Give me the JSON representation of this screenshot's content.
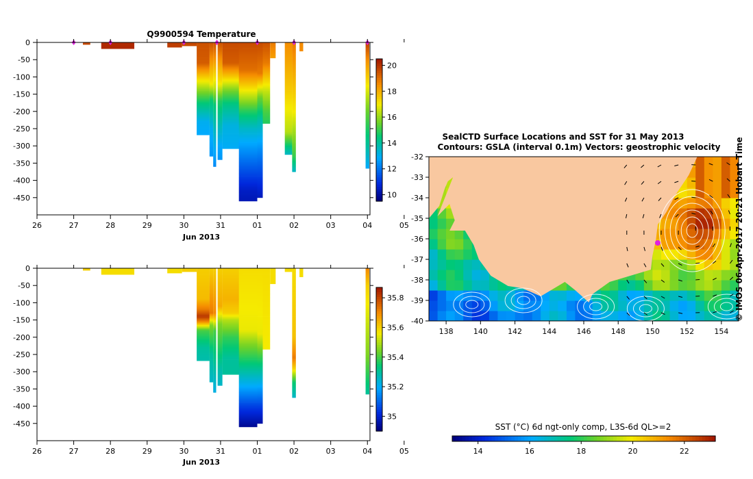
{
  "colors": {
    "land": "#f9c8a0",
    "profile_marker": "#e020e0",
    "axis": "#000000"
  },
  "chart_data": [
    {
      "id": "temperature",
      "type": "heatmap",
      "title": "Q9900594  Temperature",
      "xlabel": "Jun 2013",
      "ylabel": "",
      "x_ticks": [
        26,
        27,
        28,
        29,
        30,
        31,
        1,
        2,
        3,
        4,
        5
      ],
      "x_tick_labels": [
        "26",
        "27",
        "28",
        "29",
        "30",
        "31",
        "01",
        "02",
        "03",
        "04",
        "05"
      ],
      "y_ticks": [
        0,
        -50,
        -100,
        -150,
        -200,
        -250,
        -300,
        -350,
        -400,
        -450
      ],
      "y_tick_labels": [
        "0",
        "-50",
        "-100",
        "-150",
        "-200",
        "-250",
        "-300",
        "-350",
        "-400",
        "-450"
      ],
      "ylim": [
        -500,
        0
      ],
      "colorbar": {
        "min": 9.5,
        "max": 20.5,
        "ticks": [
          10,
          12,
          14,
          16,
          18,
          20
        ],
        "tick_labels": [
          "10",
          "12",
          "14",
          "16",
          "18",
          "20"
        ]
      },
      "profile_times": [
        27.0,
        28.0,
        30.0,
        30.9,
        32.0,
        33.0,
        35.0
      ],
      "profiles": [
        {
          "t0": 27.25,
          "t1": 27.45,
          "depth": 6,
          "stops": [
            [
              0,
              19.6
            ],
            [
              6,
              19.6
            ]
          ]
        },
        {
          "t0": 27.75,
          "t1": 28.65,
          "depth": 18,
          "stops": [
            [
              0,
              20.1
            ],
            [
              18,
              20.2
            ]
          ]
        },
        {
          "t0": 29.55,
          "t1": 29.95,
          "depth": 14,
          "stops": [
            [
              0,
              19.8
            ],
            [
              14,
              19.8
            ]
          ]
        },
        {
          "t0": 29.95,
          "t1": 30.35,
          "depth": 10,
          "stops": [
            [
              0,
              19.6
            ],
            [
              10,
              19.6
            ]
          ]
        },
        {
          "t0": 30.35,
          "t1": 30.7,
          "depth": 268,
          "stops": [
            [
              0,
              19.5
            ],
            [
              60,
              19.3
            ],
            [
              100,
              17.5
            ],
            [
              140,
              15.8
            ],
            [
              175,
              14.5
            ],
            [
              230,
              13.0
            ],
            [
              268,
              12.8
            ]
          ]
        },
        {
          "t0": 30.7,
          "t1": 30.8,
          "depth": 330,
          "stops": [
            [
              0,
              19.5
            ],
            [
              120,
              17.0
            ],
            [
              165,
              14.6
            ],
            [
              250,
              13.0
            ],
            [
              330,
              12.5
            ]
          ]
        },
        {
          "t0": 30.8,
          "t1": 30.88,
          "depth": 360,
          "stops": [
            [
              0,
              19.5
            ],
            [
              130,
              16.5
            ],
            [
              180,
              14.5
            ],
            [
              360,
              12.3
            ]
          ]
        },
        {
          "t0": 30.92,
          "t1": 31.05,
          "depth": 340,
          "stops": [
            [
              0,
              19.5
            ],
            [
              120,
              17.0
            ],
            [
              170,
              14.8
            ],
            [
              300,
              12.8
            ],
            [
              340,
              12.5
            ]
          ]
        },
        {
          "t0": 31.05,
          "t1": 31.6,
          "depth": 308,
          "stops": [
            [
              0,
              19.6
            ],
            [
              60,
              19.3
            ],
            [
              100,
              17.5
            ],
            [
              140,
              15.6
            ],
            [
              180,
              14.3
            ],
            [
              240,
              13.2
            ],
            [
              308,
              12.9
            ]
          ]
        },
        {
          "t0": 31.5,
          "t1": 32.0,
          "depth": 460,
          "stops": [
            [
              0,
              19.6
            ],
            [
              80,
              19.0
            ],
            [
              130,
              17.3
            ],
            [
              200,
              14.8
            ],
            [
              250,
              13.5
            ],
            [
              320,
              12.3
            ],
            [
              380,
              11.3
            ],
            [
              430,
              10.5
            ],
            [
              460,
              10.3
            ]
          ]
        },
        {
          "t0": 32.0,
          "t1": 32.15,
          "depth": 450,
          "stops": [
            [
              0,
              19.6
            ],
            [
              90,
              18.8
            ],
            [
              160,
              15.5
            ],
            [
              230,
              13.8
            ],
            [
              320,
              12.2
            ],
            [
              400,
              11.0
            ],
            [
              450,
              10.4
            ]
          ]
        },
        {
          "t0": 32.15,
          "t1": 32.35,
          "depth": 235,
          "stops": [
            [
              0,
              19.5
            ],
            [
              60,
              18.8
            ],
            [
              140,
              16.5
            ],
            [
              200,
              15.2
            ],
            [
              235,
              14.8
            ]
          ]
        },
        {
          "t0": 32.35,
          "t1": 32.5,
          "depth": 45,
          "stops": [
            [
              0,
              18.8
            ],
            [
              45,
              18.2
            ]
          ]
        },
        {
          "t0": 32.75,
          "t1": 32.95,
          "depth": 325,
          "stops": [
            [
              0,
              18.5
            ],
            [
              140,
              17.5
            ],
            [
              260,
              16.3
            ],
            [
              300,
              14.5
            ],
            [
              325,
              13.5
            ]
          ]
        },
        {
          "t0": 32.95,
          "t1": 33.05,
          "depth": 375,
          "stops": [
            [
              0,
              18.8
            ],
            [
              200,
              17.0
            ],
            [
              330,
              15.0
            ],
            [
              375,
              13.5
            ]
          ]
        },
        {
          "t0": 33.15,
          "t1": 33.25,
          "depth": 25,
          "stops": [
            [
              0,
              18.5
            ],
            [
              25,
              18.5
            ]
          ]
        },
        {
          "t0": 34.95,
          "t1": 35.05,
          "depth": 365,
          "stops": [
            [
              0,
              19.8
            ],
            [
              50,
              18.5
            ],
            [
              200,
              15.5
            ],
            [
              300,
              14.0
            ],
            [
              365,
              12.8
            ]
          ]
        }
      ]
    },
    {
      "id": "salinity",
      "type": "heatmap",
      "title": "",
      "xlabel": "Jun 2013",
      "ylabel": "",
      "x_ticks": [
        26,
        27,
        28,
        29,
        30,
        31,
        1,
        2,
        3,
        4,
        5
      ],
      "x_tick_labels": [
        "26",
        "27",
        "28",
        "29",
        "30",
        "31",
        "01",
        "02",
        "03",
        "04",
        "05"
      ],
      "y_ticks": [
        0,
        -50,
        -100,
        -150,
        -200,
        -250,
        -300,
        -350,
        -400,
        -450
      ],
      "y_tick_labels": [
        "0",
        "-50",
        "-100",
        "-150",
        "-200",
        "-250",
        "-300",
        "-350",
        "-400",
        "-450"
      ],
      "ylim": [
        -500,
        0
      ],
      "colorbar": {
        "min": 34.9,
        "max": 35.87,
        "ticks": [
          35.0,
          35.2,
          35.4,
          35.6,
          35.8
        ],
        "tick_labels": [
          "35",
          "35.2",
          "35.4",
          "35.6",
          "35.8"
        ]
      },
      "profiles": [
        {
          "t0": 27.25,
          "t1": 27.45,
          "depth": 6,
          "stops": [
            [
              0,
              35.6
            ],
            [
              6,
              35.6
            ]
          ]
        },
        {
          "t0": 27.75,
          "t1": 28.65,
          "depth": 18,
          "stops": [
            [
              0,
              35.58
            ],
            [
              18,
              35.58
            ]
          ]
        },
        {
          "t0": 29.55,
          "t1": 29.95,
          "depth": 14,
          "stops": [
            [
              0,
              35.58
            ],
            [
              14,
              35.58
            ]
          ]
        },
        {
          "t0": 29.95,
          "t1": 30.35,
          "depth": 10,
          "stops": [
            [
              0,
              35.6
            ],
            [
              10,
              35.6
            ]
          ]
        },
        {
          "t0": 30.35,
          "t1": 30.7,
          "depth": 268,
          "stops": [
            [
              0,
              35.6
            ],
            [
              90,
              35.63
            ],
            [
              120,
              35.72
            ],
            [
              140,
              35.82
            ],
            [
              155,
              35.7
            ],
            [
              180,
              35.4
            ],
            [
              230,
              35.3
            ],
            [
              268,
              35.28
            ]
          ]
        },
        {
          "t0": 30.7,
          "t1": 30.8,
          "depth": 330,
          "stops": [
            [
              0,
              35.6
            ],
            [
              130,
              35.72
            ],
            [
              165,
              35.45
            ],
            [
              250,
              35.3
            ],
            [
              330,
              35.25
            ]
          ]
        },
        {
          "t0": 30.8,
          "t1": 30.88,
          "depth": 360,
          "stops": [
            [
              0,
              35.6
            ],
            [
              130,
              35.7
            ],
            [
              180,
              35.4
            ],
            [
              360,
              35.22
            ]
          ]
        },
        {
          "t0": 30.92,
          "t1": 31.05,
          "depth": 340,
          "stops": [
            [
              0,
              35.6
            ],
            [
              110,
              35.65
            ],
            [
              160,
              35.45
            ],
            [
              300,
              35.28
            ],
            [
              340,
              35.25
            ]
          ]
        },
        {
          "t0": 31.05,
          "t1": 31.6,
          "depth": 308,
          "stops": [
            [
              0,
              35.6
            ],
            [
              90,
              35.64
            ],
            [
              130,
              35.6
            ],
            [
              150,
              35.5
            ],
            [
              200,
              35.38
            ],
            [
              260,
              35.3
            ],
            [
              308,
              35.3
            ]
          ]
        },
        {
          "t0": 31.5,
          "t1": 32.0,
          "depth": 460,
          "stops": [
            [
              0,
              35.58
            ],
            [
              180,
              35.55
            ],
            [
              220,
              35.45
            ],
            [
              280,
              35.33
            ],
            [
              340,
              35.2
            ],
            [
              400,
              35.05
            ],
            [
              460,
              34.93
            ]
          ]
        },
        {
          "t0": 32.0,
          "t1": 32.15,
          "depth": 450,
          "stops": [
            [
              0,
              35.58
            ],
            [
              190,
              35.55
            ],
            [
              250,
              35.4
            ],
            [
              330,
              35.22
            ],
            [
              400,
              35.05
            ],
            [
              450,
              34.95
            ]
          ]
        },
        {
          "t0": 32.15,
          "t1": 32.35,
          "depth": 235,
          "stops": [
            [
              0,
              35.58
            ],
            [
              235,
              35.56
            ]
          ]
        },
        {
          "t0": 32.35,
          "t1": 32.5,
          "depth": 45,
          "stops": [
            [
              0,
              35.58
            ],
            [
              45,
              35.58
            ]
          ]
        },
        {
          "t0": 32.75,
          "t1": 32.95,
          "depth": 10,
          "stops": [
            [
              0,
              35.58
            ],
            [
              10,
              35.58
            ]
          ]
        },
        {
          "t0": 32.95,
          "t1": 33.05,
          "depth": 375,
          "stops": [
            [
              0,
              35.58
            ],
            [
              200,
              35.62
            ],
            [
              260,
              35.72
            ],
            [
              290,
              35.6
            ],
            [
              330,
              35.35
            ],
            [
              375,
              35.25
            ]
          ]
        },
        {
          "t0": 33.15,
          "t1": 33.25,
          "depth": 25,
          "stops": [
            [
              0,
              35.58
            ],
            [
              25,
              35.58
            ]
          ]
        },
        {
          "t0": 34.95,
          "t1": 35.05,
          "depth": 365,
          "stops": [
            [
              0,
              35.7
            ],
            [
              50,
              35.6
            ],
            [
              250,
              35.45
            ],
            [
              365,
              35.3
            ]
          ]
        }
      ]
    },
    {
      "id": "sst_map",
      "type": "heatmap",
      "title": "SealCTD Surface Locations and SST for 31 May 2013",
      "subtitle": "Contours: GSLA (interval 0.1m) Vectors: geostrophic velocity",
      "xlabel": "",
      "ylabel": "",
      "x_range": [
        137,
        155
      ],
      "y_range": [
        -40,
        -32
      ],
      "x_ticks": [
        138,
        140,
        142,
        144,
        146,
        148,
        150,
        152,
        154
      ],
      "x_tick_labels": [
        "138",
        "140",
        "142",
        "144",
        "146",
        "148",
        "150",
        "152",
        "154"
      ],
      "y_ticks": [
        -32,
        -33,
        -34,
        -35,
        -36,
        -37,
        -38,
        -39,
        -40
      ],
      "y_tick_labels": [
        "-32",
        "-33",
        "-34",
        "-35",
        "-36",
        "-37",
        "-38",
        "-39",
        "-40"
      ],
      "colorbar_label": "SST (°C) 6d ngt-only comp, L3S-6d QL>=2",
      "colorbar": {
        "min": 13,
        "max": 23.2,
        "ticks": [
          14,
          16,
          18,
          20,
          22
        ],
        "tick_labels": [
          "14",
          "16",
          "18",
          "20",
          "22"
        ]
      },
      "side_label": "© IMOS 06-Apr-2017 20:21 Hobart Time",
      "eddy_center": [
        152.3,
        -35.6
      ],
      "seal_location": [
        150.3,
        -36.2
      ],
      "coastline": [
        [
          137,
          -35.0
        ],
        [
          137.6,
          -34.4
        ],
        [
          137.9,
          -33.6
        ],
        [
          138.1,
          -33.2
        ],
        [
          138.4,
          -33.0
        ],
        [
          137.5,
          -34.9
        ],
        [
          138.2,
          -34.3
        ],
        [
          138.5,
          -35.1
        ],
        [
          138.2,
          -35.6
        ],
        [
          139.1,
          -35.6
        ],
        [
          139.6,
          -36.3
        ],
        [
          139.9,
          -37.0
        ],
        [
          140.6,
          -37.8
        ],
        [
          141.6,
          -38.3
        ],
        [
          142.4,
          -38.4
        ],
        [
          143.5,
          -38.8
        ],
        [
          144.3,
          -38.4
        ],
        [
          144.9,
          -38.1
        ],
        [
          145.5,
          -38.5
        ],
        [
          146.3,
          -39.1
        ],
        [
          146.5,
          -38.7
        ],
        [
          147.5,
          -38.1
        ],
        [
          148.7,
          -37.8
        ],
        [
          149.9,
          -37.5
        ],
        [
          150.0,
          -36.8
        ],
        [
          150.2,
          -36.0
        ],
        [
          150.3,
          -35.3
        ],
        [
          150.8,
          -34.7
        ],
        [
          151.3,
          -33.9
        ],
        [
          152.1,
          -32.9
        ],
        [
          152.6,
          -32.0
        ]
      ]
    }
  ]
}
